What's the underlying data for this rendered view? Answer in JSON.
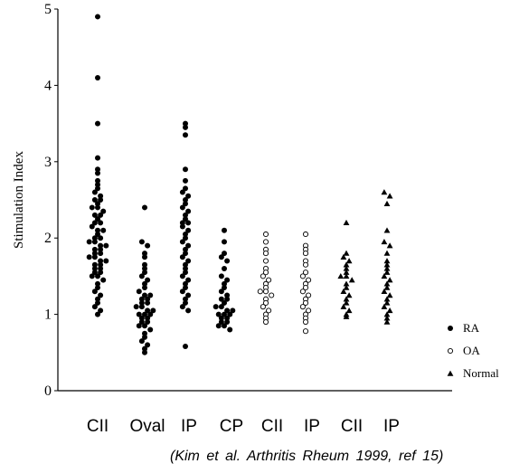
{
  "chart_data": {
    "type": "scatter",
    "ylabel": "Stimulation Index",
    "ylim": [
      0,
      5
    ],
    "yticks": [
      0,
      1,
      2,
      3,
      4,
      5
    ],
    "categories": [
      "CII",
      "Oval",
      "IP",
      "CP",
      "CII",
      "IP",
      "CII",
      "IP"
    ],
    "legend_position": "right",
    "series": [
      {
        "name": "RA",
        "marker": "filled-circle",
        "groups": [
          {
            "category_index": 0,
            "values": [
              4.9,
              4.1,
              3.5,
              3.05,
              2.9,
              2.85,
              2.75,
              2.7,
              2.65,
              2.6,
              2.55,
              2.5,
              2.5,
              2.45,
              2.4,
              2.4,
              2.35,
              2.3,
              2.3,
              2.25,
              2.2,
              2.2,
              2.15,
              2.1,
              2.1,
              2.05,
              2.0,
              2.0,
              1.95,
              1.95,
              1.9,
              1.9,
              1.85,
              1.85,
              1.8,
              1.8,
              1.75,
              1.75,
              1.7,
              1.7,
              1.65,
              1.65,
              1.6,
              1.6,
              1.55,
              1.55,
              1.5,
              1.5,
              1.45,
              1.4,
              1.35,
              1.3,
              1.25,
              1.2,
              1.15,
              1.1,
              1.05,
              1.0
            ]
          },
          {
            "category_index": 1,
            "values": [
              2.4,
              1.95,
              1.9,
              1.8,
              1.75,
              1.65,
              1.6,
              1.55,
              1.5,
              1.45,
              1.4,
              1.35,
              1.3,
              1.25,
              1.25,
              1.2,
              1.2,
              1.15,
              1.15,
              1.1,
              1.1,
              1.05,
              1.05,
              1.0,
              1.0,
              1.0,
              0.95,
              0.95,
              0.9,
              0.9,
              0.85,
              0.85,
              0.8,
              0.75,
              0.7,
              0.65,
              0.6,
              0.55,
              0.5
            ]
          },
          {
            "category_index": 2,
            "values": [
              3.5,
              3.45,
              3.35,
              2.9,
              2.75,
              2.65,
              2.6,
              2.55,
              2.5,
              2.45,
              2.4,
              2.35,
              2.3,
              2.25,
              2.2,
              2.2,
              2.15,
              2.1,
              2.05,
              2.0,
              1.95,
              1.9,
              1.85,
              1.8,
              1.75,
              1.7,
              1.65,
              1.6,
              1.55,
              1.5,
              1.45,
              1.4,
              1.35,
              1.3,
              1.25,
              1.2,
              1.15,
              1.1,
              1.05,
              0.58
            ]
          },
          {
            "category_index": 3,
            "values": [
              2.1,
              1.95,
              1.8,
              1.75,
              1.7,
              1.6,
              1.5,
              1.45,
              1.4,
              1.35,
              1.3,
              1.25,
              1.2,
              1.2,
              1.15,
              1.1,
              1.1,
              1.05,
              1.05,
              1.0,
              1.0,
              1.0,
              0.95,
              0.95,
              0.9,
              0.9,
              0.85,
              0.85,
              0.8
            ]
          }
        ]
      },
      {
        "name": "OA",
        "marker": "open-circle",
        "groups": [
          {
            "category_index": 4,
            "values": [
              2.05,
              1.95,
              1.85,
              1.8,
              1.7,
              1.6,
              1.55,
              1.5,
              1.45,
              1.4,
              1.35,
              1.3,
              1.3,
              1.25,
              1.2,
              1.15,
              1.1,
              1.05,
              1.0,
              0.95,
              0.9
            ]
          },
          {
            "category_index": 5,
            "values": [
              2.05,
              1.9,
              1.85,
              1.8,
              1.7,
              1.65,
              1.55,
              1.5,
              1.45,
              1.4,
              1.35,
              1.3,
              1.25,
              1.2,
              1.15,
              1.1,
              1.05,
              1.0,
              0.95,
              0.9,
              0.78
            ]
          }
        ]
      },
      {
        "name": "Normal",
        "marker": "filled-triangle",
        "groups": [
          {
            "category_index": 6,
            "values": [
              2.2,
              1.8,
              1.75,
              1.7,
              1.65,
              1.6,
              1.55,
              1.5,
              1.5,
              1.45,
              1.4,
              1.35,
              1.3,
              1.25,
              1.2,
              1.15,
              1.1,
              1.05,
              1.0,
              0.97
            ]
          },
          {
            "category_index": 7,
            "values": [
              2.6,
              2.55,
              2.45,
              2.1,
              1.95,
              1.9,
              1.8,
              1.7,
              1.65,
              1.6,
              1.55,
              1.5,
              1.45,
              1.4,
              1.35,
              1.3,
              1.25,
              1.2,
              1.15,
              1.1,
              1.05,
              1.0,
              0.95,
              0.9
            ]
          }
        ]
      }
    ]
  },
  "citation": "(Kim et al. Arthritis Rheum 1999, ref 15)"
}
